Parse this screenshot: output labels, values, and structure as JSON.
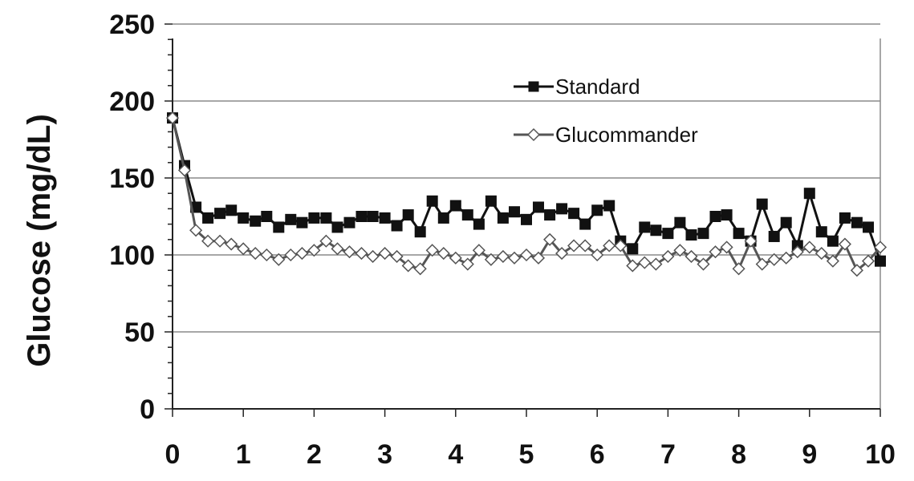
{
  "chart_data": {
    "type": "line",
    "ylabel": "Glucose (mg/dL)",
    "xlabel": "",
    "xlim": [
      0,
      10
    ],
    "ylim": [
      0,
      250
    ],
    "x_ticks": [
      "0",
      "1",
      "2",
      "3",
      "4",
      "5",
      "6",
      "7",
      "8",
      "9",
      "10"
    ],
    "y_ticks": [
      "0",
      "50",
      "100",
      "150",
      "200",
      "250"
    ],
    "grid": "horizontal",
    "legend_position": "top-right",
    "series": [
      {
        "name": "Standard",
        "marker": "filled-square",
        "color": "#111111",
        "points": [
          [
            0.0,
            189
          ],
          [
            0.17,
            158
          ],
          [
            0.33,
            131
          ],
          [
            0.5,
            124
          ],
          [
            0.67,
            127
          ],
          [
            0.83,
            129
          ],
          [
            1.0,
            124
          ],
          [
            1.17,
            122
          ],
          [
            1.33,
            125
          ],
          [
            1.5,
            118
          ],
          [
            1.67,
            123
          ],
          [
            1.83,
            121
          ],
          [
            2.0,
            124
          ],
          [
            2.17,
            124
          ],
          [
            2.33,
            118
          ],
          [
            2.5,
            121
          ],
          [
            2.67,
            125
          ],
          [
            2.83,
            125
          ],
          [
            3.0,
            124
          ],
          [
            3.17,
            119
          ],
          [
            3.33,
            126
          ],
          [
            3.5,
            115
          ],
          [
            3.67,
            135
          ],
          [
            3.83,
            124
          ],
          [
            4.0,
            132
          ],
          [
            4.17,
            126
          ],
          [
            4.33,
            120
          ],
          [
            4.5,
            135
          ],
          [
            4.67,
            124
          ],
          [
            4.83,
            128
          ],
          [
            5.0,
            123
          ],
          [
            5.17,
            131
          ],
          [
            5.33,
            126
          ],
          [
            5.5,
            130
          ],
          [
            5.67,
            127
          ],
          [
            5.83,
            120
          ],
          [
            6.0,
            129
          ],
          [
            6.17,
            132
          ],
          [
            6.33,
            109
          ],
          [
            6.5,
            104
          ],
          [
            6.67,
            118
          ],
          [
            6.83,
            116
          ],
          [
            7.0,
            114
          ],
          [
            7.17,
            121
          ],
          [
            7.33,
            113
          ],
          [
            7.5,
            114
          ],
          [
            7.67,
            125
          ],
          [
            7.83,
            126
          ],
          [
            8.0,
            114
          ],
          [
            8.17,
            109
          ],
          [
            8.33,
            133
          ],
          [
            8.5,
            112
          ],
          [
            8.67,
            121
          ],
          [
            8.83,
            106
          ],
          [
            9.0,
            140
          ],
          [
            9.17,
            115
          ],
          [
            9.33,
            109
          ],
          [
            9.5,
            124
          ],
          [
            9.67,
            121
          ],
          [
            9.83,
            118
          ],
          [
            10.0,
            96
          ]
        ]
      },
      {
        "name": "Glucommander",
        "marker": "open-diamond",
        "color": "#555555",
        "points": [
          [
            0.0,
            189
          ],
          [
            0.17,
            155
          ],
          [
            0.33,
            116
          ],
          [
            0.5,
            109
          ],
          [
            0.67,
            109
          ],
          [
            0.83,
            107
          ],
          [
            1.0,
            104
          ],
          [
            1.17,
            101
          ],
          [
            1.33,
            100
          ],
          [
            1.5,
            97
          ],
          [
            1.67,
            100
          ],
          [
            1.83,
            101
          ],
          [
            2.0,
            103
          ],
          [
            2.17,
            109
          ],
          [
            2.33,
            104
          ],
          [
            2.5,
            102
          ],
          [
            2.67,
            101
          ],
          [
            2.83,
            99
          ],
          [
            3.0,
            101
          ],
          [
            3.17,
            99
          ],
          [
            3.33,
            93
          ],
          [
            3.5,
            91
          ],
          [
            3.67,
            103
          ],
          [
            3.83,
            101
          ],
          [
            4.0,
            98
          ],
          [
            4.17,
            94
          ],
          [
            4.33,
            103
          ],
          [
            4.5,
            97
          ],
          [
            4.67,
            99
          ],
          [
            4.83,
            98
          ],
          [
            5.0,
            100
          ],
          [
            5.17,
            98
          ],
          [
            5.33,
            110
          ],
          [
            5.5,
            101
          ],
          [
            5.67,
            106
          ],
          [
            5.83,
            106
          ],
          [
            6.0,
            100
          ],
          [
            6.17,
            106
          ],
          [
            6.33,
            106
          ],
          [
            6.5,
            93
          ],
          [
            6.67,
            95
          ],
          [
            6.83,
            94
          ],
          [
            7.0,
            99
          ],
          [
            7.17,
            103
          ],
          [
            7.33,
            99
          ],
          [
            7.5,
            94
          ],
          [
            7.67,
            102
          ],
          [
            7.83,
            105
          ],
          [
            8.0,
            91
          ],
          [
            8.17,
            109
          ],
          [
            8.33,
            94
          ],
          [
            8.5,
            97
          ],
          [
            8.67,
            98
          ],
          [
            8.83,
            102
          ],
          [
            9.0,
            105
          ],
          [
            9.17,
            101
          ],
          [
            9.33,
            96
          ],
          [
            9.5,
            107
          ],
          [
            9.67,
            90
          ],
          [
            9.83,
            96
          ],
          [
            10.0,
            105
          ]
        ]
      }
    ]
  }
}
